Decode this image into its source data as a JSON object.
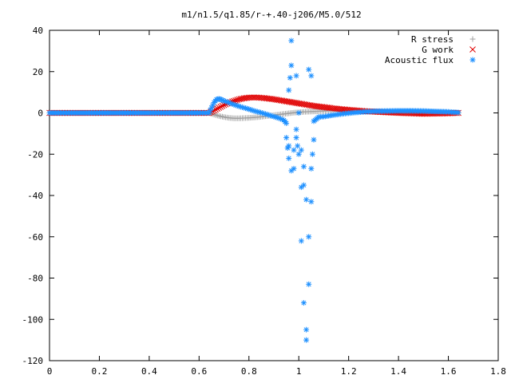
{
  "chart_data": {
    "type": "scatter",
    "title": "m1/n1.5/q1.85/r-+.40-j206/M5.0/512",
    "xlabel": "",
    "ylabel": "",
    "xlim": [
      0,
      1.8
    ],
    "ylim": [
      -120,
      40
    ],
    "grid": false,
    "legend_position": "top-right",
    "x_ticks": [
      0,
      0.2,
      0.4,
      0.6,
      0.8,
      1,
      1.2,
      1.4,
      1.6,
      1.8
    ],
    "y_ticks": [
      -120,
      -100,
      -80,
      -60,
      -40,
      -20,
      0,
      20,
      40
    ],
    "series": [
      {
        "name": "R stress",
        "marker": "plus",
        "color": "#a0a0a0",
        "points": [
          [
            0.0,
            0
          ],
          [
            0.05,
            0
          ],
          [
            0.1,
            0
          ],
          [
            0.15,
            0
          ],
          [
            0.2,
            0
          ],
          [
            0.25,
            0
          ],
          [
            0.3,
            0
          ],
          [
            0.35,
            0
          ],
          [
            0.4,
            0
          ],
          [
            0.45,
            0
          ],
          [
            0.5,
            0
          ],
          [
            0.55,
            0
          ],
          [
            0.6,
            0
          ],
          [
            0.64,
            0
          ],
          [
            0.66,
            -0.8
          ],
          [
            0.68,
            -1.5
          ],
          [
            0.7,
            -2.0
          ],
          [
            0.72,
            -2.4
          ],
          [
            0.74,
            -2.6
          ],
          [
            0.76,
            -2.6
          ],
          [
            0.78,
            -2.5
          ],
          [
            0.8,
            -2.4
          ],
          [
            0.82,
            -2.2
          ],
          [
            0.84,
            -2.0
          ],
          [
            0.86,
            -1.7
          ],
          [
            0.88,
            -1.4
          ],
          [
            0.9,
            -1.1
          ],
          [
            0.92,
            -0.8
          ],
          [
            0.94,
            -0.5
          ],
          [
            0.96,
            -0.2
          ],
          [
            0.98,
            0.1
          ],
          [
            1.0,
            0.3
          ],
          [
            1.02,
            0.5
          ],
          [
            1.04,
            0.6
          ],
          [
            1.06,
            0.7
          ],
          [
            1.08,
            0.8
          ],
          [
            1.1,
            0.9
          ],
          [
            1.14,
            1.0
          ],
          [
            1.18,
            1.0
          ],
          [
            1.22,
            0.9
          ],
          [
            1.26,
            0.8
          ],
          [
            1.3,
            0.6
          ],
          [
            1.35,
            0.4
          ],
          [
            1.4,
            0.2
          ],
          [
            1.45,
            0.1
          ],
          [
            1.5,
            0
          ],
          [
            1.55,
            0
          ],
          [
            1.6,
            0
          ],
          [
            1.64,
            0
          ]
        ]
      },
      {
        "name": "G work",
        "marker": "cross",
        "color": "#e00000",
        "points": [
          [
            0.0,
            0
          ],
          [
            0.05,
            0
          ],
          [
            0.1,
            0
          ],
          [
            0.15,
            0
          ],
          [
            0.2,
            0
          ],
          [
            0.25,
            0
          ],
          [
            0.3,
            0
          ],
          [
            0.35,
            0
          ],
          [
            0.4,
            0
          ],
          [
            0.45,
            0
          ],
          [
            0.5,
            0
          ],
          [
            0.55,
            0
          ],
          [
            0.6,
            0
          ],
          [
            0.64,
            0
          ],
          [
            0.66,
            1.2
          ],
          [
            0.68,
            2.5
          ],
          [
            0.7,
            3.8
          ],
          [
            0.72,
            4.9
          ],
          [
            0.74,
            5.8
          ],
          [
            0.76,
            6.6
          ],
          [
            0.78,
            7.1
          ],
          [
            0.8,
            7.4
          ],
          [
            0.82,
            7.5
          ],
          [
            0.84,
            7.4
          ],
          [
            0.86,
            7.2
          ],
          [
            0.88,
            6.9
          ],
          [
            0.9,
            6.6
          ],
          [
            0.92,
            6.2
          ],
          [
            0.94,
            5.8
          ],
          [
            0.96,
            5.4
          ],
          [
            0.98,
            5.0
          ],
          [
            1.0,
            4.6
          ],
          [
            1.02,
            4.2
          ],
          [
            1.04,
            3.8
          ],
          [
            1.06,
            3.4
          ],
          [
            1.08,
            3.1
          ],
          [
            1.1,
            2.8
          ],
          [
            1.14,
            2.2
          ],
          [
            1.18,
            1.7
          ],
          [
            1.22,
            1.3
          ],
          [
            1.26,
            0.9
          ],
          [
            1.3,
            0.6
          ],
          [
            1.35,
            0.3
          ],
          [
            1.4,
            0.0
          ],
          [
            1.45,
            -0.2
          ],
          [
            1.5,
            -0.4
          ],
          [
            1.55,
            -0.3
          ],
          [
            1.6,
            -0.2
          ],
          [
            1.64,
            0
          ]
        ]
      },
      {
        "name": "Acoustic flux",
        "marker": "star",
        "color": "#1e90ff",
        "points": [
          [
            0.0,
            0
          ],
          [
            0.05,
            0
          ],
          [
            0.1,
            0
          ],
          [
            0.15,
            0
          ],
          [
            0.2,
            0
          ],
          [
            0.25,
            0
          ],
          [
            0.3,
            0
          ],
          [
            0.35,
            0
          ],
          [
            0.4,
            0
          ],
          [
            0.45,
            0
          ],
          [
            0.5,
            0
          ],
          [
            0.55,
            0
          ],
          [
            0.6,
            0
          ],
          [
            0.64,
            0
          ],
          [
            0.65,
            2.5
          ],
          [
            0.66,
            5.0
          ],
          [
            0.67,
            6.5
          ],
          [
            0.68,
            6.8
          ],
          [
            0.69,
            6.4
          ],
          [
            0.7,
            5.8
          ],
          [
            0.72,
            5.0
          ],
          [
            0.74,
            4.0
          ],
          [
            0.76,
            3.2
          ],
          [
            0.78,
            2.5
          ],
          [
            0.8,
            1.8
          ],
          [
            0.82,
            1.0
          ],
          [
            0.84,
            0.4
          ],
          [
            0.86,
            -0.3
          ],
          [
            0.88,
            -1.0
          ],
          [
            0.9,
            -1.8
          ],
          [
            0.92,
            -2.5
          ],
          [
            0.94,
            -3.5
          ],
          [
            0.95,
            -5
          ],
          [
            0.95,
            -12
          ],
          [
            0.96,
            -22
          ],
          [
            0.96,
            -16
          ],
          [
            0.96,
            11
          ],
          [
            0.97,
            23
          ],
          [
            0.97,
            -28
          ],
          [
            0.97,
            35
          ],
          [
            0.98,
            -27
          ],
          [
            0.98,
            -18
          ],
          [
            0.99,
            18
          ],
          [
            0.99,
            -8
          ],
          [
            0.99,
            -12
          ],
          [
            1.0,
            -20
          ],
          [
            1.0,
            0
          ],
          [
            1.01,
            -18
          ],
          [
            1.01,
            -36
          ],
          [
            1.01,
            -62
          ],
          [
            1.02,
            -35
          ],
          [
            1.02,
            -26
          ],
          [
            1.02,
            -92
          ],
          [
            1.03,
            -110
          ],
          [
            1.03,
            -105
          ],
          [
            1.03,
            -42
          ],
          [
            1.04,
            -83
          ],
          [
            1.04,
            21
          ],
          [
            1.04,
            -60
          ],
          [
            1.05,
            18
          ],
          [
            1.05,
            -43
          ],
          [
            1.05,
            -27
          ],
          [
            1.06,
            -13
          ],
          [
            1.06,
            -4
          ],
          [
            1.07,
            -3
          ],
          [
            1.08,
            -2
          ],
          [
            1.1,
            -1.8
          ],
          [
            1.14,
            -1.0
          ],
          [
            1.18,
            -0.4
          ],
          [
            1.22,
            0.1
          ],
          [
            1.26,
            0.5
          ],
          [
            1.3,
            0.8
          ],
          [
            1.35,
            0.9
          ],
          [
            1.4,
            1.0
          ],
          [
            1.45,
            1.0
          ],
          [
            1.5,
            0.9
          ],
          [
            1.55,
            0.7
          ],
          [
            1.6,
            0.5
          ],
          [
            1.64,
            0.2
          ]
        ]
      }
    ]
  }
}
